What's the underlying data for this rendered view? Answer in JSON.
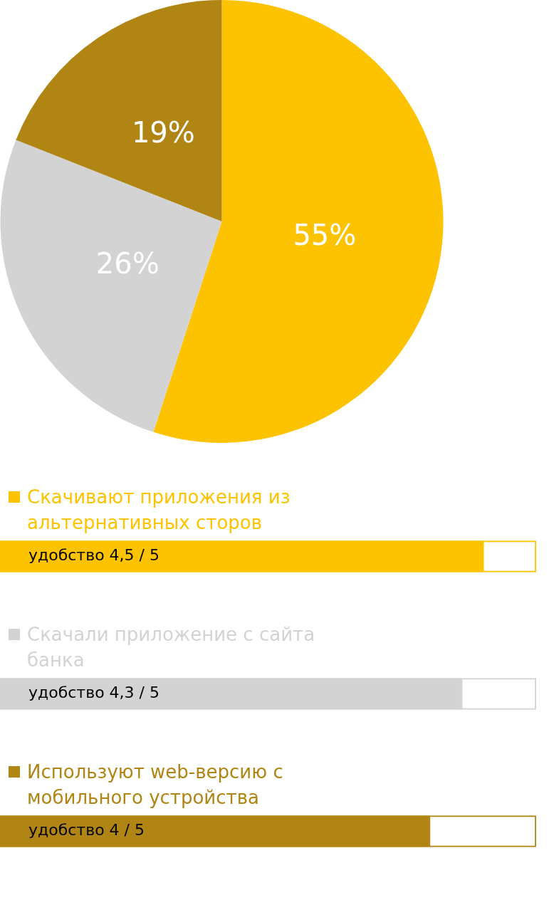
{
  "chart_data": [
    {
      "type": "pie",
      "categories": [
        "Скачивают приложения из альтернативных сторов",
        "Скачали приложение с сайта банка",
        "Используют web-версию с мобильного устройства"
      ],
      "values": [
        55,
        26,
        19
      ],
      "colors": [
        "#fdc300",
        "#d3d3d3",
        "#b08514"
      ],
      "value_labels": [
        "55%",
        "26%",
        "19%"
      ],
      "legend": "bottom"
    },
    {
      "type": "bar",
      "orientation": "horizontal",
      "stacked": true,
      "categories": [
        null,
        null,
        null
      ],
      "series": [
        {
          "values": [
            4.5,
            4.3,
            4
          ],
          "colors": [
            "#fdc300",
            "#d3d3d3",
            "#b08514"
          ],
          "value_labels": [
            "удобство 4,5 / 5",
            "удобство 4,3 / 5",
            "удобство 4 / 5"
          ]
        },
        {
          "values": [
            0.5,
            0.7,
            1
          ],
          "colors": [
            "#fdc300",
            "#d3d3d3",
            "#b08514"
          ]
        }
      ],
      "xlim": [
        0,
        5
      ],
      "tick_labels": false
    }
  ]
}
